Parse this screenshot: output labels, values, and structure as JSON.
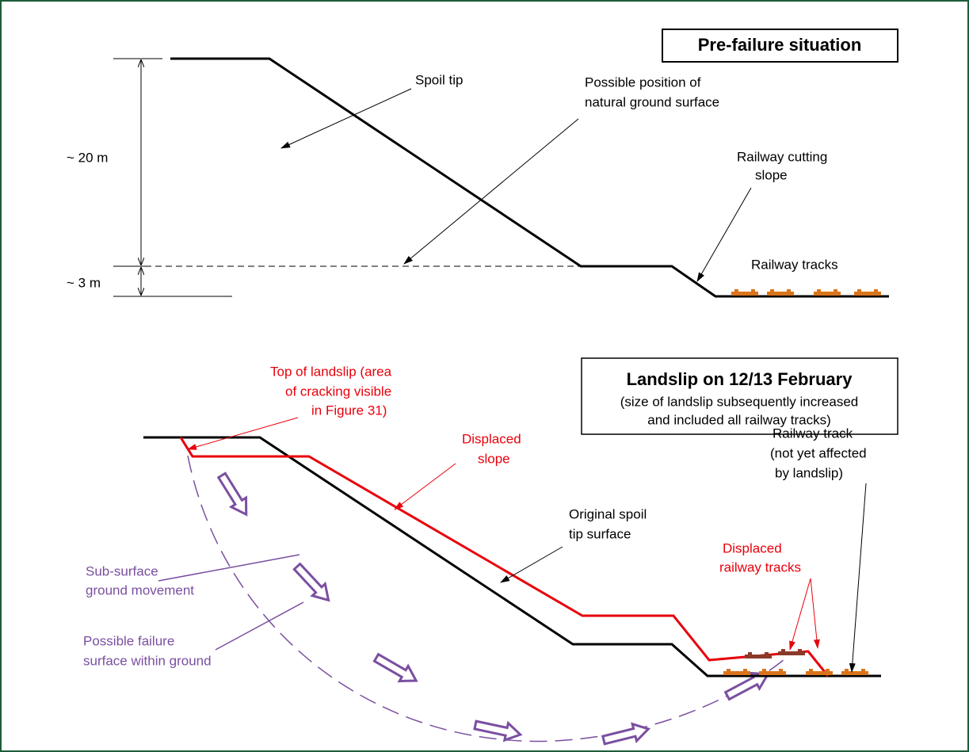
{
  "pre_failure": {
    "title": "Pre-failure situation",
    "dimension_upper": "~ 20 m",
    "dimension_lower": "~ 3 m",
    "spoil_tip": "Spoil tip",
    "natural_ground": [
      "Possible position of",
      "natural ground surface"
    ],
    "cutting_slope": [
      "Railway cutting",
      "slope"
    ],
    "tracks": "Railway tracks"
  },
  "landslip": {
    "title": "Landslip on 12/13 February",
    "subtitle": [
      "(size of landslip subsequently increased",
      "and included all railway tracks)"
    ],
    "top_of_landslip": [
      "Top of landslip (area",
      "of cracking visible",
      "in Figure 31)"
    ],
    "displaced_slope": [
      "Displaced",
      "slope"
    ],
    "original_surface": [
      "Original spoil",
      "tip surface"
    ],
    "unaffected_track": [
      "Railway track",
      "(not yet affected",
      "by landslip)"
    ],
    "displaced_tracks": [
      "Displaced",
      "railway tracks"
    ],
    "sub_surface": [
      "Sub-surface",
      "ground movement"
    ],
    "failure_surface": [
      "Possible failure",
      "surface within ground"
    ]
  }
}
